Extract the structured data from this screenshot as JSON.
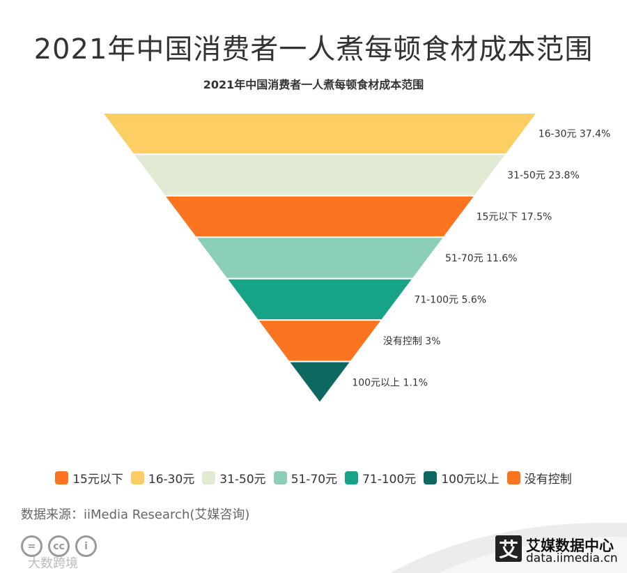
{
  "header": {
    "title": "2021年中国消费者一人煮每顿食材成本范围"
  },
  "chart_data": {
    "type": "funnel",
    "title": "2021年中国消费者一人煮每顿食材成本范围",
    "stages": [
      {
        "label": "16-30元",
        "value": 37.4,
        "display": "16-30元 37.4%",
        "color": "#fdce64"
      },
      {
        "label": "31-50元",
        "value": 23.8,
        "display": "31-50元 23.8%",
        "color": "#e1ead2"
      },
      {
        "label": "15元以下",
        "value": 17.5,
        "display": "15元以下 17.5%",
        "color": "#fb7520"
      },
      {
        "label": "51-70元",
        "value": 11.6,
        "display": "51-70元 11.6%",
        "color": "#8ccfb9"
      },
      {
        "label": "71-100元",
        "value": 5.6,
        "display": "71-100元 5.6%",
        "color": "#16a386"
      },
      {
        "label": "没有控制",
        "value": 3,
        "display": "没有控制 3%",
        "color": "#fb7520"
      },
      {
        "label": "100元以上",
        "value": 1.1,
        "display": "100元以上 1.1%",
        "color": "#0d6861"
      }
    ],
    "legend": [
      {
        "label": "15元以下",
        "color": "#fb7520"
      },
      {
        "label": "16-30元",
        "color": "#fdce64"
      },
      {
        "label": "31-50元",
        "color": "#e1ead2"
      },
      {
        "label": "51-70元",
        "color": "#8ccfb9"
      },
      {
        "label": "71-100元",
        "color": "#16a386"
      },
      {
        "label": "100元以上",
        "color": "#0d6861"
      },
      {
        "label": "没有控制",
        "color": "#fb7520"
      }
    ],
    "legend_position": "bottom"
  },
  "footer": {
    "source": "数据来源：iiMedia Research(艾媒咨询)",
    "license_icons": [
      {
        "name": "equals-icon",
        "glyph": "="
      },
      {
        "name": "cc-icon",
        "glyph": "cc"
      },
      {
        "name": "person-icon",
        "glyph": "i"
      }
    ],
    "watermark": "大数跨境",
    "brand_logo_char": "艾",
    "brand_name": "艾媒数据中心",
    "brand_url": "data.iimedia.cn"
  }
}
